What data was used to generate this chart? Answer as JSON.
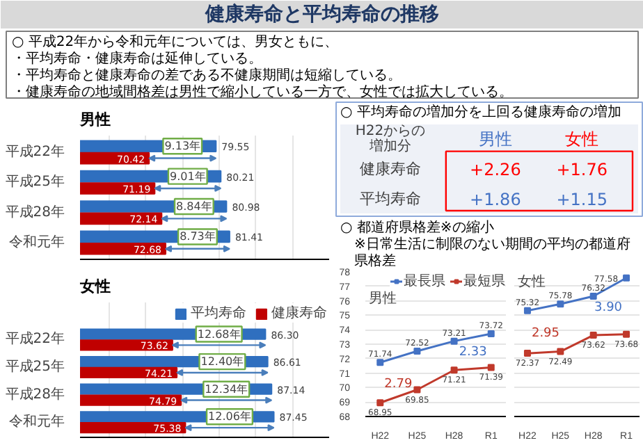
{
  "chart_data": [
    {
      "type": "other",
      "title": "健康寿命と平均寿命の推移",
      "annotations": [
        "○ 平成22年から令和元年については、男女ともに、",
        "・平均寿命・健康寿命は延伸している。",
        "・平均寿命と健康寿命の差である不健康期間は短縮している。",
        "・健康寿命の地域間格差は男性で縮小している一方で、女性では拡大している。"
      ]
    },
    {
      "type": "bar",
      "orientation": "horizontal",
      "title": "男性",
      "categories": [
        "平成22年",
        "平成25年",
        "平成28年",
        "令和元年"
      ],
      "xlim": [
        61,
        95
      ],
      "xticks": [
        {
          "value": 65,
          "label": null
        },
        {
          "value": 70,
          "label": null
        },
        {
          "value": 75,
          "label": null
        },
        {
          "value": 80,
          "label": null
        },
        {
          "value": 85,
          "label": null
        },
        {
          "value": 90,
          "label": null
        }
      ],
      "grid": "x",
      "tick_labels": "y",
      "series": [
        {
          "color": "#2f6fbf",
          "values": [
            79.55,
            80.21,
            80.98,
            81.41
          ],
          "value_labels": [
            "79.55",
            "80.21",
            "80.98",
            "81.41"
          ]
        },
        {
          "color": "#c00000",
          "values": [
            70.42,
            71.19,
            72.14,
            72.68
          ],
          "value_labels": [
            "70.42",
            "71.19",
            "72.14",
            "72.68"
          ]
        }
      ],
      "annotations": [
        "9.13年",
        "9.01年",
        "8.84年",
        "8.73年"
      ]
    },
    {
      "type": "bar",
      "orientation": "horizontal",
      "title": "女性",
      "categories": [
        "平成22年",
        "平成25年",
        "平成28年",
        "令和元年"
      ],
      "xlim": [
        61,
        95
      ],
      "xticks": [
        {
          "value": 65,
          "label": null
        },
        {
          "value": 70,
          "label": null
        },
        {
          "value": 75,
          "label": null
        },
        {
          "value": 80,
          "label": null
        },
        {
          "value": 85,
          "label": null
        },
        {
          "value": 90,
          "label": null
        }
      ],
      "grid": "x",
      "tick_labels": "y",
      "legend": "top right",
      "series": [
        {
          "name": "平均寿命",
          "color": "#2f6fbf",
          "values": [
            86.3,
            86.61,
            87.14,
            87.45
          ],
          "value_labels": [
            "86.30",
            "86.61",
            "87.14",
            "87.45"
          ]
        },
        {
          "name": "健康寿命",
          "color": "#c00000",
          "values": [
            73.62,
            74.21,
            74.79,
            75.38
          ],
          "value_labels": [
            "73.62",
            "74.21",
            "74.79",
            "75.38"
          ]
        }
      ],
      "annotations": [
        "12.68年",
        "12.40年",
        "12.34年",
        "12.06年"
      ]
    },
    {
      "type": "other",
      "title": "○ 平均寿命の増加分を上回る健康寿命の増加",
      "annotations": [
        "H22からの増加分",
        "男性",
        "女性",
        "健康寿命",
        "+2.26",
        "+1.76",
        "平均寿命",
        "+1.86",
        "+1.15"
      ]
    },
    {
      "type": "other",
      "title": "○ 都道府県格差※の縮小",
      "subtitle": "※日常生活に制限のない期間の平均の都道府県格差"
    },
    {
      "type": "line",
      "categories": [
        "H22",
        "H25",
        "H28",
        "R1"
      ],
      "ylim": [
        68,
        78
      ],
      "yticks": [
        68,
        69,
        70,
        71,
        72,
        73,
        74,
        75,
        76,
        77,
        78
      ],
      "grid": "y",
      "marker": "square",
      "data_labels": true,
      "legend": "top right",
      "series": [
        {
          "name": "最長県",
          "color": "#4472c4",
          "values": [
            71.74,
            72.52,
            73.21,
            73.72
          ]
        },
        {
          "name": "最短県",
          "color": "#c0392b",
          "values": [
            68.95,
            69.85,
            71.21,
            71.39
          ]
        }
      ],
      "annotations": [
        "男性",
        "2.79",
        "2.33"
      ]
    },
    {
      "type": "line",
      "categories": [
        "H22",
        "H25",
        "H28",
        "R1"
      ],
      "ylim": [
        68,
        78
      ],
      "yticks": [
        68,
        69,
        70,
        71,
        72,
        73,
        74,
        75,
        76,
        77,
        78
      ],
      "grid": "y",
      "marker": "square",
      "data_labels": true,
      "tick_labels": "x",
      "series": [
        {
          "color": "#4472c4",
          "values": [
            75.32,
            75.78,
            76.32,
            77.58
          ]
        },
        {
          "color": "#c0392b",
          "values": [
            72.37,
            72.49,
            73.62,
            73.68
          ]
        }
      ],
      "annotations": [
        "女性",
        "2.95",
        "3.90"
      ]
    }
  ]
}
